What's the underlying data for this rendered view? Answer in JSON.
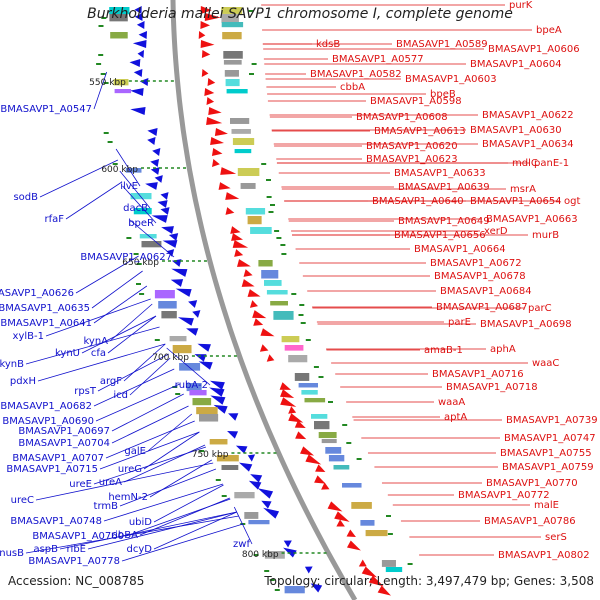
{
  "title": "Burkholderia mallei SAVP1 chromosome I, complete genome",
  "footer": {
    "accession": "Accession: NC_008785",
    "summary": "Topology: circular; Length: 3,497,479 bp; Genes: 3,508"
  },
  "colors": {
    "forward_genes": "#ee1111",
    "reverse_genes": "#1111dd",
    "forward_label": "#dd1111",
    "reverse_label": "#1111cc",
    "backbone": "#999999",
    "orf_marks": "#228822"
  },
  "ticks": [
    "550 kbp",
    "600 kbp",
    "650 kbp",
    "700 kbp",
    "750 kbp",
    "800 kbp"
  ],
  "forward_labels": [
    "purK",
    "bpeA",
    "kdsB",
    "BMASAVP1_A0589",
    "BMASAVP1_A0606",
    "BMASAVP1_A0577",
    "BMASAVP1_A0604",
    "BMASAVP1_A0582",
    "BMASAVP1_A0603",
    "cbbA",
    "bpeB",
    "BMASAVP1_A0598",
    "BMASAVP1_A0622",
    "BMASAVP1_A0608",
    "BMASAVP1_A0630",
    "BMASAVP1_A0613",
    "BMASAVP1_A0634",
    "BMASAVP1_A0620",
    "BMASAVP1_A0623",
    "mdlC",
    "panE-1",
    "BMASAVP1_A0633",
    "BMASAVP1_A0639",
    "msrA",
    "BMASAVP1_A0640",
    "BMASAVP1_A0654",
    "ogt",
    "BMASAVP1_A0663",
    "BMASAVP1_A0649",
    "BMASAVP1_A0656",
    "xerD",
    "murB",
    "BMASAVP1_A0664",
    "BMASAVP1_A0672",
    "BMASAVP1_A0678",
    "BMASAVP1_A0684",
    "BMASAVP1_A0687",
    "parC",
    "parE",
    "BMASAVP1_A0698",
    "amaB-1",
    "aphA",
    "waaC",
    "BMASAVP1_A0716",
    "BMASAVP1_A0718",
    "waaA",
    "aptA",
    "BMASAVP1_A0739",
    "BMASAVP1_A0747",
    "BMASAVP1_A0755",
    "BMASAVP1_A0759",
    "BMASAVP1_A0770",
    "BMASAVP1_A0772",
    "malE",
    "BMASAVP1_A0786",
    "serS",
    "BMASAVP1_A0802"
  ],
  "reverse_labels": [
    "BMASAVP1_A0547",
    "ilvE",
    "sodB",
    "rfaF",
    "dacB",
    "bpeR",
    "BMASAVP1_A0627",
    "BMASAVP1_A0626",
    "BMASAVP1_A0635",
    "BMASAVP1_A0641",
    "kynA",
    "xylB-1",
    "kynU",
    "cfa",
    "kynB",
    "pdxH",
    "argF",
    "rpsT",
    "rubA-2",
    "icd",
    "BMASAVP1_A0682",
    "BMASAVP1_A0690",
    "BMASAVP1_A0697",
    "galE",
    "BMASAVP1_A0704",
    "BMASAVP1_A0707",
    "ureG",
    "BMASAVP1_A0715",
    "ureE",
    "ureA",
    "ureC",
    "hemN-2",
    "trmB",
    "BMASAVP1_A0748",
    "ubiD",
    "BMASAVP1_A0760",
    "ribBA",
    "nusB",
    "aspB",
    "ribE",
    "dcyD",
    "BMASAVP1_A0778",
    "zwf"
  ]
}
